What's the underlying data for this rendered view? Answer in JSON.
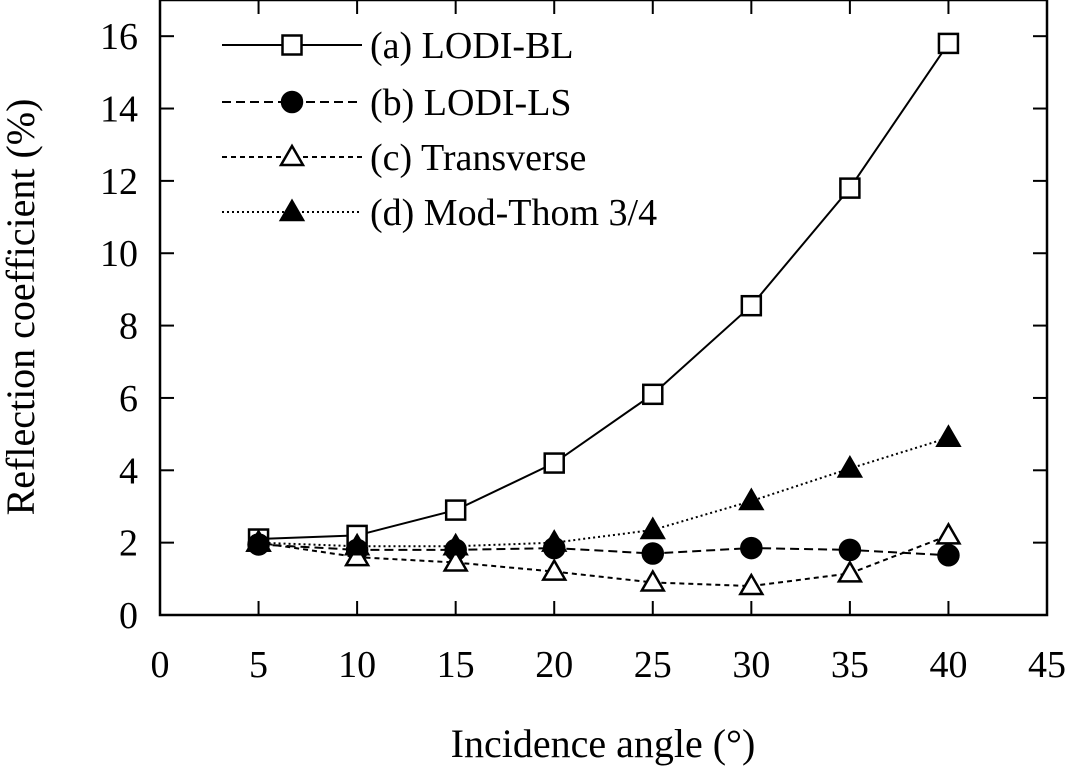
{
  "chart_data": {
    "type": "line",
    "title": "",
    "xlabel": "Incidence angle (°)",
    "ylabel": "Reflection coefficient (%)",
    "xlim": [
      0,
      45
    ],
    "ylim": [
      0,
      17
    ],
    "xticks": [
      "0",
      "5",
      "10",
      "15",
      "20",
      "25",
      "30",
      "35",
      "40",
      "45"
    ],
    "yticks": [
      "0",
      "2",
      "4",
      "6",
      "8",
      "10",
      "12",
      "14",
      "16"
    ],
    "grid": false,
    "legend_position": "top-left",
    "x": [
      5,
      10,
      15,
      20,
      25,
      30,
      35,
      40
    ],
    "series": [
      {
        "name": "(a) LODI-BL",
        "marker": "open-square",
        "line": "solid",
        "values": [
          2.1,
          2.2,
          2.9,
          4.2,
          6.1,
          8.55,
          11.8,
          15.8
        ]
      },
      {
        "name": "(b) LODI-LS",
        "marker": "filled-circle",
        "line": "dashed",
        "values": [
          1.95,
          1.8,
          1.8,
          1.85,
          1.7,
          1.85,
          1.8,
          1.65
        ]
      },
      {
        "name": "(c) Transverse",
        "marker": "open-triangle",
        "line": "short-dashed",
        "values": [
          2.0,
          1.6,
          1.45,
          1.2,
          0.9,
          0.8,
          1.15,
          2.2
        ]
      },
      {
        "name": "(d) Mod-Thom 3/4",
        "marker": "filled-triangle",
        "line": "dotted",
        "values": [
          2.0,
          1.9,
          1.9,
          2.0,
          2.35,
          3.15,
          4.05,
          4.9
        ]
      }
    ]
  }
}
